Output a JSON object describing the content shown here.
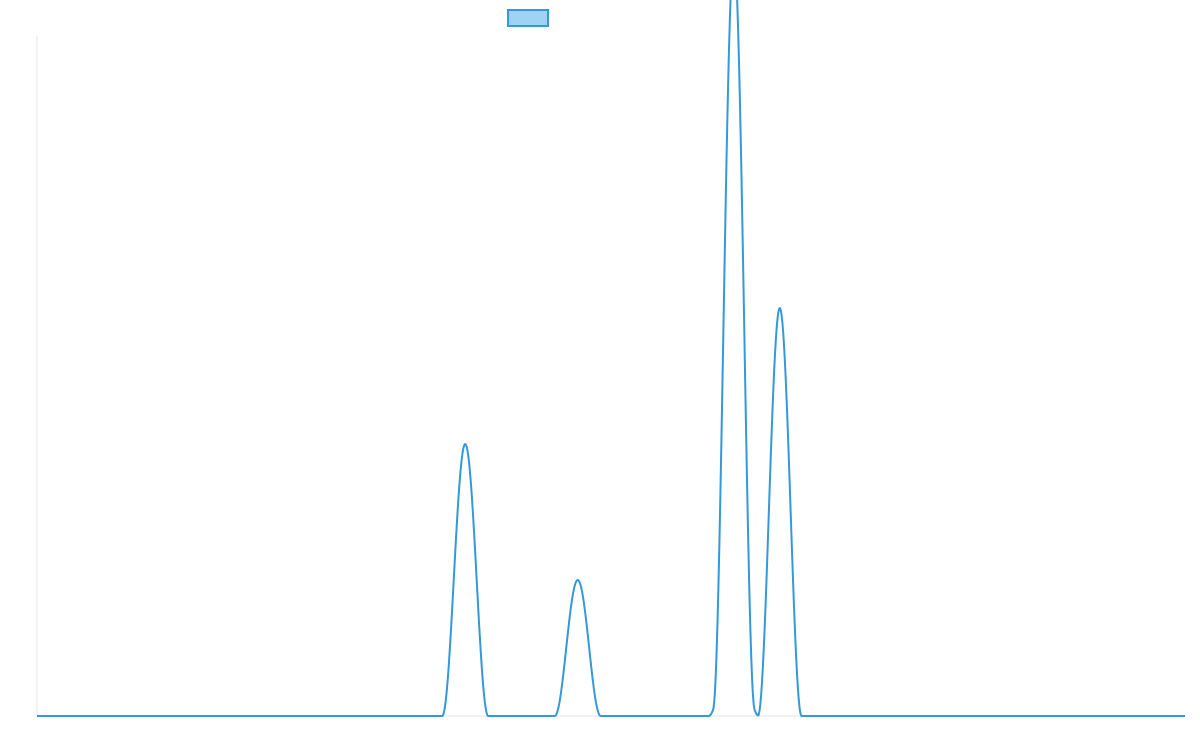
{
  "chart_data": {
    "type": "line",
    "title": "",
    "xlabel": "",
    "ylabel": "",
    "xlim": [
      0,
      100
    ],
    "ylim": [
      0,
      100
    ],
    "grid": false,
    "legend": {
      "placement": "top-center",
      "entries": [
        {
          "label": ""
        }
      ]
    },
    "series": [
      {
        "name": "",
        "color": "#3498db",
        "fill": "#9fd3f5",
        "peaks": [
          {
            "center": 37.3,
            "height": 40,
            "halfwidth": 2.0
          },
          {
            "center": 47.1,
            "height": 20,
            "halfwidth": 2.0
          },
          {
            "center": 60.7,
            "height": 12,
            "halfwidth": 2.2
          },
          {
            "center": 60.7,
            "height": 100,
            "halfwidth": 1.8
          },
          {
            "center": 64.7,
            "height": 60,
            "halfwidth": 1.9
          }
        ]
      }
    ]
  }
}
